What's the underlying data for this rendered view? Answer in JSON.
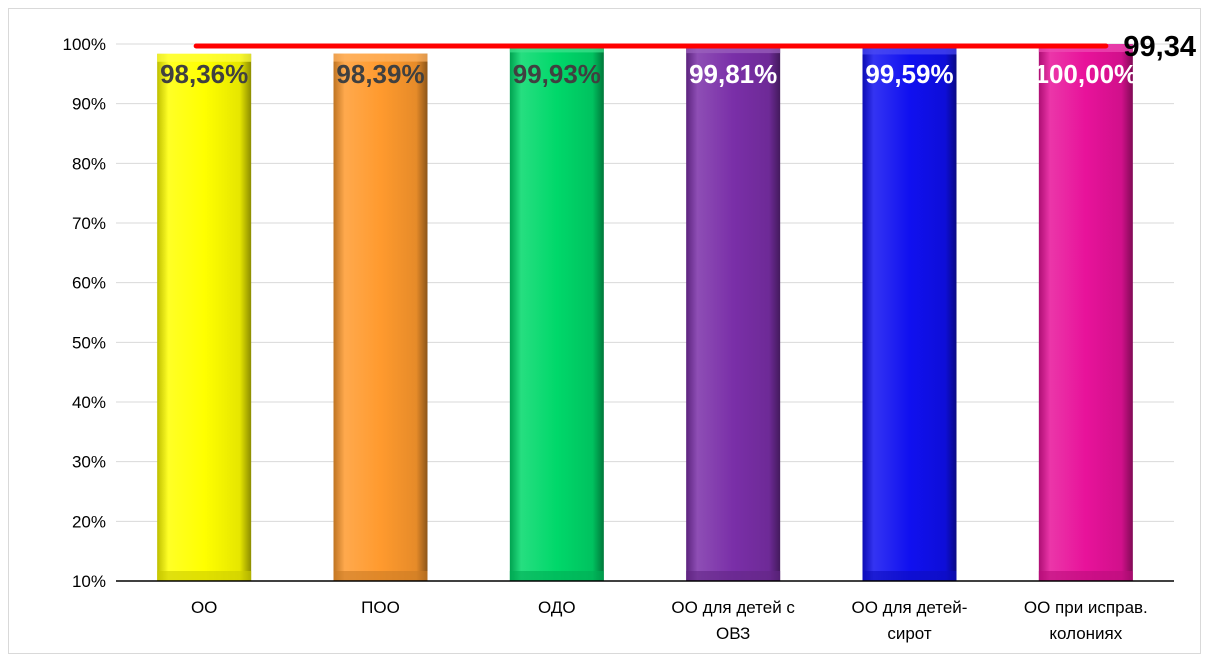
{
  "chart_data": {
    "type": "bar",
    "categories": [
      [
        "ОО"
      ],
      [
        "ПОО"
      ],
      [
        "ОДО"
      ],
      [
        "ОО для детей с",
        "ОВЗ"
      ],
      [
        "ОО для детей-",
        "сирот"
      ],
      [
        "ОО при исправ.",
        "колониях"
      ]
    ],
    "values": [
      98.36,
      98.39,
      99.93,
      99.81,
      99.59,
      100.0
    ],
    "data_labels": [
      "98,36%",
      "98,39%",
      "99,93%",
      "99,81%",
      "99,59%",
      "100,00%"
    ],
    "colors": [
      "#ffff00",
      "#ff9a2e",
      "#00d86a",
      "#7a2fa8",
      "#1010f0",
      "#e8129a"
    ],
    "label_colors": [
      "#404040",
      "#404040",
      "#404040",
      "#ffffff",
      "#ffffff",
      "#ffffff"
    ],
    "y_ticks": [
      "10%",
      "20%",
      "30%",
      "40%",
      "50%",
      "60%",
      "70%",
      "80%",
      "90%",
      "100%"
    ],
    "ylim": [
      10,
      100
    ],
    "reference_line": {
      "value": 99.34,
      "label": "99,34",
      "color": "#ff0000"
    },
    "grid": true,
    "title": "",
    "xlabel": "",
    "ylabel": ""
  }
}
